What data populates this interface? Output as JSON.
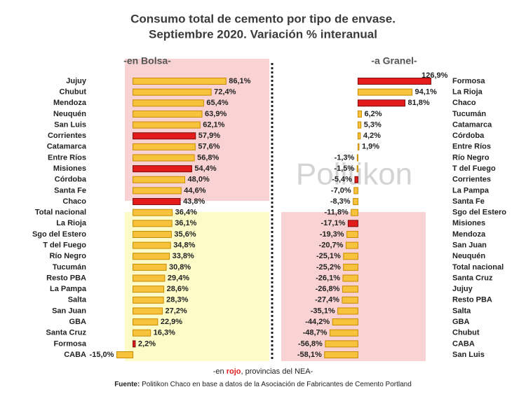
{
  "title": [
    "Consumo total de cemento por tipo de envase.",
    "Septiembre 2020. Variación % interanual"
  ],
  "watermark": "Politikon",
  "footnote": [
    "-en ",
    "rojo",
    ", provincias del NEA-"
  ],
  "source": [
    "Fuente:",
    " Politikon Chaco en base a datos de la Asociación de Fabricantes de Cemento Portland"
  ],
  "chart_data": [
    {
      "type": "bar",
      "orientation": "horizontal",
      "subtitle": "-en Bolsa-",
      "categories": [
        "Jujuy",
        "Chubut",
        "Mendoza",
        "Neuquén",
        "San Luis",
        "Corrientes",
        "Catamarca",
        "Entre Ríos",
        "Misiones",
        "Córdoba",
        "Santa Fe",
        "Chaco",
        "Total nacional",
        "La Rioja",
        "Sgo del Estero",
        "T del Fuego",
        "Río Negro",
        "Tucumán",
        "Resto PBA",
        "La Pampa",
        "Salta",
        "San Juan",
        "GBA",
        "Santa Cruz",
        "Formosa",
        "CABA"
      ],
      "values": [
        86.1,
        72.4,
        65.4,
        63.9,
        62.1,
        57.9,
        57.6,
        56.8,
        54.4,
        48.0,
        44.6,
        43.8,
        36.4,
        36.1,
        35.6,
        34.8,
        33.8,
        30.8,
        29.4,
        28.6,
        28.3,
        27.2,
        22.9,
        16.3,
        2.2,
        -15.0
      ],
      "value_labels": [
        "86,1%",
        "72,4%",
        "65,4%",
        "63,9%",
        "62,1%",
        "57,9%",
        "57,6%",
        "56,8%",
        "54,4%",
        "48,0%",
        "44,6%",
        "43,8%",
        "36,4%",
        "36,1%",
        "35,6%",
        "34,8%",
        "33,8%",
        "30,8%",
        "29,4%",
        "28,6%",
        "28,3%",
        "27,2%",
        "22,9%",
        "16,3%",
        "2,2%",
        "-15,0%"
      ],
      "colors": [
        "#f7c23c",
        "#f7c23c",
        "#f7c23c",
        "#f7c23c",
        "#f7c23c",
        "#e31b1b",
        "#f7c23c",
        "#f7c23c",
        "#e31b1b",
        "#f7c23c",
        "#f7c23c",
        "#e31b1b",
        "#f7c23c",
        "#f7c23c",
        "#f7c23c",
        "#f7c23c",
        "#f7c23c",
        "#f7c23c",
        "#f7c23c",
        "#f7c23c",
        "#f7c23c",
        "#f7c23c",
        "#f7c23c",
        "#f7c23c",
        "#e31b1b",
        "#f7c23c"
      ],
      "xlim": [
        -25,
        95
      ]
    },
    {
      "type": "bar",
      "orientation": "horizontal",
      "subtitle": "-a Granel-",
      "categories": [
        "Formosa",
        "La Rioja",
        "Chaco",
        "Tucumán",
        "Catamarca",
        "Córdoba",
        "Entre Ríos",
        "Río Negro",
        "T del Fuego",
        "Corrientes",
        "La Pampa",
        "Santa Fe",
        "Sgo del Estero",
        "Misiones",
        "Mendoza",
        "San Juan",
        "Neuquén",
        "Total nacional",
        "Santa Cruz",
        "Jujuy",
        "Resto PBA",
        "Salta",
        "GBA",
        "Chubut",
        "CABA",
        "San Luis"
      ],
      "values": [
        126.9,
        94.1,
        81.8,
        6.2,
        5.3,
        4.2,
        1.9,
        -1.3,
        -1.5,
        -5.4,
        -7.0,
        -8.3,
        -11.8,
        -17.1,
        -19.3,
        -20.7,
        -25.1,
        -25.2,
        -26.1,
        -26.8,
        -27.4,
        -35.1,
        -44.2,
        -48.7,
        -56.8,
        -58.1
      ],
      "value_labels": [
        "126,9%",
        "94,1%",
        "81,8%",
        "6,2%",
        "5,3%",
        "4,2%",
        "1,9%",
        "-1,3%",
        "-1,5%",
        "-5,4%",
        "-7,0%",
        "-8,3%",
        "-11,8%",
        "-17,1%",
        "-19,3%",
        "-20,7%",
        "-25,1%",
        "-25,2%",
        "-26,1%",
        "-26,8%",
        "-27,4%",
        "-35,1%",
        "-44,2%",
        "-48,7%",
        "-56,8%",
        "-58,1%"
      ],
      "colors": [
        "#e31b1b",
        "#f7c23c",
        "#e31b1b",
        "#f7c23c",
        "#f7c23c",
        "#f7c23c",
        "#f7c23c",
        "#f7c23c",
        "#f7c23c",
        "#e31b1b",
        "#f7c23c",
        "#f7c23c",
        "#f7c23c",
        "#e31b1b",
        "#f7c23c",
        "#f7c23c",
        "#f7c23c",
        "#f7c23c",
        "#f7c23c",
        "#f7c23c",
        "#f7c23c",
        "#f7c23c",
        "#f7c23c",
        "#f7c23c",
        "#f7c23c",
        "#f7c23c"
      ],
      "xlim": [
        -70,
        130
      ]
    }
  ]
}
